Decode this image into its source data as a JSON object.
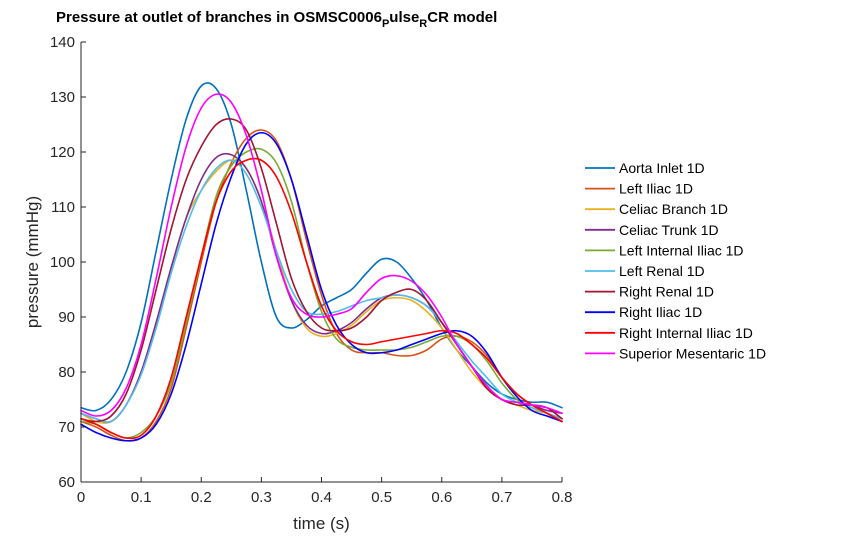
{
  "chart_data": {
    "type": "line",
    "title": {
      "main": "Pressure at outlet of branches in OSMSC0006",
      "sub1": "P",
      "mid": "ulse",
      "sub2": "R",
      "end": "CR model"
    },
    "xlabel": "time (s)",
    "ylabel": "pressure (mmHg)",
    "xlim": [
      0,
      0.8
    ],
    "ylim": [
      60,
      140
    ],
    "xticks": [
      0,
      0.1,
      0.2,
      0.3,
      0.4,
      0.5,
      0.6,
      0.7,
      0.8
    ],
    "xtick_labels": [
      "0",
      "0.1",
      "0.2",
      "0.3",
      "0.4",
      "0.5",
      "0.6",
      "0.7",
      "0.8"
    ],
    "yticks": [
      60,
      70,
      80,
      90,
      100,
      110,
      120,
      130,
      140
    ],
    "ytick_labels": [
      "60",
      "70",
      "80",
      "90",
      "100",
      "110",
      "120",
      "130",
      "140"
    ],
    "grid": false,
    "legend_position": "right",
    "x": [
      0,
      0.025,
      0.05,
      0.075,
      0.1,
      0.125,
      0.15,
      0.175,
      0.2,
      0.225,
      0.25,
      0.275,
      0.3,
      0.325,
      0.35,
      0.375,
      0.4,
      0.425,
      0.45,
      0.475,
      0.5,
      0.525,
      0.55,
      0.575,
      0.6,
      0.625,
      0.65,
      0.675,
      0.7,
      0.725,
      0.75,
      0.775,
      0.8
    ],
    "series": [
      {
        "name": "Aorta Inlet 1D",
        "color": "#0072BD",
        "values": [
          73.5,
          73,
          75,
          80,
          89,
          102,
          115,
          126,
          132,
          131.5,
          125,
          113,
          100,
          90,
          88,
          89.5,
          92,
          93.5,
          95,
          98,
          100.5,
          100,
          97,
          93,
          88,
          84,
          81,
          78,
          76,
          75,
          74.5,
          74.5,
          73.5
        ]
      },
      {
        "name": "Left Iliac 1D",
        "color": "#D95319",
        "values": [
          71,
          70,
          68.5,
          67.5,
          68,
          71,
          77,
          88,
          100,
          111,
          118,
          122.5,
          124,
          122,
          115,
          104,
          94,
          87,
          84,
          83.5,
          83.5,
          83,
          83,
          84,
          86,
          86.5,
          85.5,
          83,
          79,
          76,
          74,
          72.5,
          71
        ]
      },
      {
        "name": "Celiac Branch 1D",
        "color": "#EDB120",
        "values": [
          72.5,
          71,
          71,
          74,
          80,
          89,
          99,
          108,
          113,
          116.5,
          118.5,
          117,
          111,
          102,
          93,
          88,
          86.5,
          87,
          88.5,
          91,
          93,
          93.5,
          93,
          91,
          88,
          84,
          80,
          77,
          75,
          74,
          73,
          72.5,
          71.5
        ]
      },
      {
        "name": "Celiac Trunk 1D",
        "color": "#7E2F8E",
        "values": [
          72.5,
          71.5,
          71,
          74,
          80,
          89,
          99,
          108,
          115,
          119,
          119.5,
          117,
          111,
          101,
          93,
          88.5,
          87,
          87.5,
          89,
          91.5,
          93.5,
          94,
          93.5,
          92,
          89,
          85,
          81,
          77.5,
          75,
          74.5,
          74,
          73,
          72.5
        ]
      },
      {
        "name": "Left Internal Iliac 1D",
        "color": "#77AC30",
        "values": [
          71,
          70.5,
          69,
          68,
          69,
          72,
          78,
          89,
          101,
          112,
          117.5,
          120,
          120.5,
          118,
          111,
          100,
          91,
          86,
          84.5,
          84,
          84,
          84,
          84.5,
          85.5,
          86.5,
          86.5,
          85,
          82,
          78,
          75,
          73.5,
          72.5,
          71.5
        ]
      },
      {
        "name": "Left Renal 1D",
        "color": "#4DBEEE",
        "values": [
          72.5,
          71.5,
          71,
          74,
          79.5,
          88,
          98,
          106.5,
          113,
          117,
          118.5,
          116,
          110,
          102,
          95,
          91,
          90.5,
          91,
          92,
          93,
          93.5,
          94,
          93.5,
          92,
          89,
          85.5,
          82,
          79,
          76,
          74.5,
          73.5,
          72.5,
          71.5
        ]
      },
      {
        "name": "Right Renal 1D",
        "color": "#A2142F",
        "values": [
          71.5,
          71,
          72,
          76,
          84,
          95,
          106,
          115,
          121,
          125,
          126,
          124,
          117,
          107,
          97,
          91,
          88,
          87.5,
          88,
          90,
          93,
          94.5,
          95,
          93,
          89,
          85,
          81,
          77,
          75,
          74,
          74,
          73.5,
          71.5
        ]
      },
      {
        "name": "Right Iliac 1D",
        "color": "#0000FF",
        "values": [
          70.5,
          69,
          68,
          67.5,
          68,
          70.5,
          76,
          85,
          96,
          107,
          115.5,
          121.5,
          123.5,
          121.5,
          115,
          105,
          95,
          88.5,
          85,
          83.5,
          83.5,
          84,
          85,
          86,
          87,
          87.5,
          86.5,
          83.5,
          79,
          75.5,
          73,
          72,
          71
        ]
      },
      {
        "name": "Right Internal Iliac 1D",
        "color": "#FF0000",
        "values": [
          71.5,
          70.5,
          69,
          68,
          68.5,
          72,
          79,
          90,
          101,
          111,
          116.5,
          118.5,
          118.5,
          115.5,
          109,
          100,
          92,
          87.5,
          85.5,
          85,
          85.5,
          86,
          86.5,
          87,
          87.5,
          87,
          85,
          82.5,
          79,
          76,
          74,
          72.5,
          71
        ]
      },
      {
        "name": "Superior Mesentaric 1D",
        "color": "#FF00FF",
        "values": [
          73,
          72,
          73,
          77,
          85,
          97,
          110,
          121,
          128,
          130.5,
          129,
          123,
          113,
          101,
          93.5,
          90.5,
          90,
          90.5,
          91.5,
          94.5,
          97,
          97.5,
          96.5,
          94,
          90,
          85,
          81,
          77.5,
          75,
          74.5,
          74,
          73.5,
          72.5
        ]
      }
    ]
  }
}
